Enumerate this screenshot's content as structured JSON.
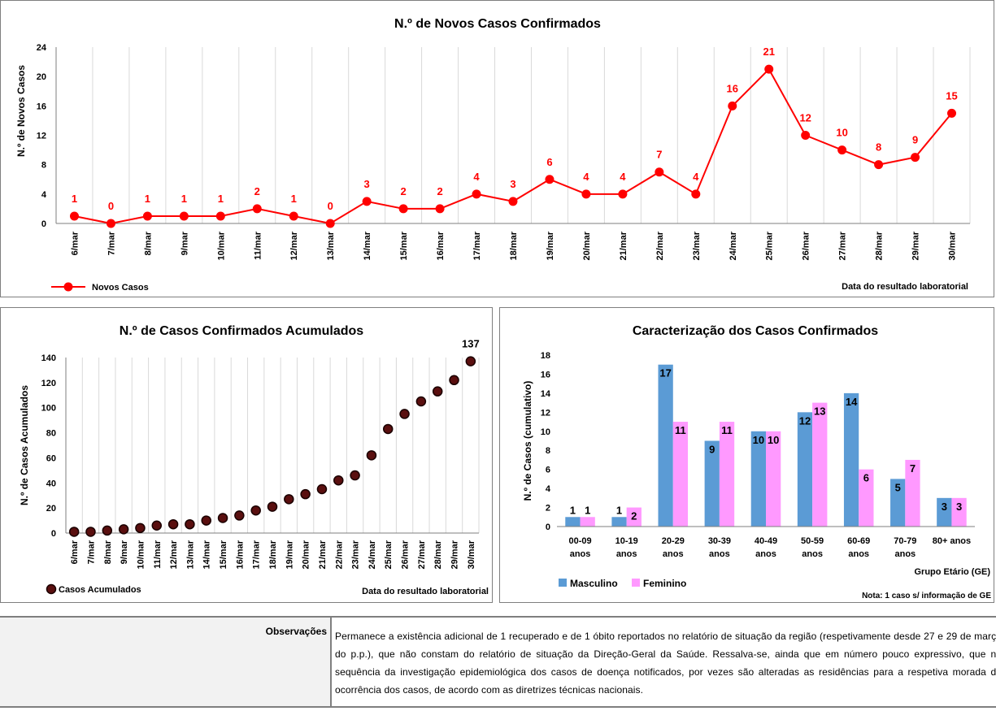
{
  "chart_data": [
    {
      "type": "line",
      "title": "N.º de Novos Casos Confirmados",
      "xlabel": "Data do resultado laboratorial",
      "ylabel": "N.º de Novos Casos",
      "ylim": [
        0,
        24
      ],
      "yticks": [
        0,
        4,
        8,
        12,
        16,
        20,
        24
      ],
      "categories": [
        "6/mar",
        "7/mar",
        "8/mar",
        "9/mar",
        "10/mar",
        "11/mar",
        "12/mar",
        "13/mar",
        "14/mar",
        "15/mar",
        "16/mar",
        "17/mar",
        "18/mar",
        "19/mar",
        "20/mar",
        "21/mar",
        "22/mar",
        "23/mar",
        "24/mar",
        "25/mar",
        "26/mar",
        "27/mar",
        "28/mar",
        "29/mar",
        "30/mar"
      ],
      "series": [
        {
          "name": "Novos Casos",
          "color": "#ff0000",
          "values": [
            1,
            0,
            1,
            1,
            1,
            2,
            1,
            0,
            3,
            2,
            2,
            4,
            3,
            6,
            4,
            4,
            7,
            4,
            16,
            21,
            12,
            10,
            8,
            9,
            15
          ]
        }
      ],
      "grid": true,
      "legend": "bottom-left"
    },
    {
      "type": "scatter",
      "title": "N.º de Casos Confirmados Acumulados",
      "xlabel": "Data do resultado laboratorial",
      "ylabel": "N.º de Casos Acumulados",
      "ylim": [
        0,
        140
      ],
      "yticks": [
        0,
        20,
        40,
        60,
        80,
        100,
        120,
        140
      ],
      "categories": [
        "6/mar",
        "7/mar",
        "8/mar",
        "9/mar",
        "10/mar",
        "11/mar",
        "12/mar",
        "13/mar",
        "14/mar",
        "15/mar",
        "16/mar",
        "17/mar",
        "18/mar",
        "19/mar",
        "20/mar",
        "21/mar",
        "22/mar",
        "23/mar",
        "24/mar",
        "25/mar",
        "26/mar",
        "27/mar",
        "28/mar",
        "29/mar",
        "30/mar"
      ],
      "series": [
        {
          "name": "Casos Acumulados",
          "color": "#5a0f0f",
          "values": [
            1,
            1,
            2,
            3,
            4,
            6,
            7,
            7,
            10,
            12,
            14,
            18,
            21,
            27,
            31,
            35,
            42,
            46,
            62,
            83,
            95,
            105,
            113,
            122,
            137
          ]
        }
      ],
      "last_label": "137",
      "grid": true,
      "legend": "bottom-left"
    },
    {
      "type": "bar",
      "title": "Caracterização dos Casos Confirmados",
      "xlabel": "Grupo Etário (GE)",
      "ylabel": "N.º de Casos (cumulativo)",
      "ylim": [
        0,
        18
      ],
      "yticks": [
        0,
        2,
        4,
        6,
        8,
        10,
        12,
        14,
        16,
        18
      ],
      "categories": [
        [
          "00-09",
          "anos"
        ],
        [
          "10-19",
          "anos"
        ],
        [
          "20-29",
          "anos"
        ],
        [
          "30-39",
          "anos"
        ],
        [
          "40-49",
          "anos"
        ],
        [
          "50-59",
          "anos"
        ],
        [
          "60-69",
          "anos"
        ],
        [
          "70-79",
          "anos"
        ],
        [
          "80+ anos",
          ""
        ]
      ],
      "series": [
        {
          "name": "Masculino",
          "color": "#5b9bd5",
          "values": [
            1,
            1,
            17,
            9,
            10,
            12,
            14,
            5,
            3
          ]
        },
        {
          "name": "Feminino",
          "color": "#ff99ff",
          "values": [
            1,
            2,
            11,
            11,
            10,
            13,
            6,
            7,
            3
          ]
        }
      ],
      "note": "Nota: 1 caso s/ informação de GE",
      "legend": "bottom-left"
    }
  ],
  "observations": {
    "label": "Observações",
    "text": "Permanece a existência adicional de 1 recuperado e de 1 óbito reportados no relatório de situação da região (respetivamente desde 27 e 29 de março do p.p.), que não constam do relatório de situação da Direção-Geral da Saúde. Ressalva-se, ainda que em número pouco expressivo, que na sequência da investigação epidemiológica dos casos de doença notificados, por vezes são alteradas as residências para a respetiva morada da ocorrência dos casos, de acordo com as diretrizes técnicas nacionais."
  }
}
